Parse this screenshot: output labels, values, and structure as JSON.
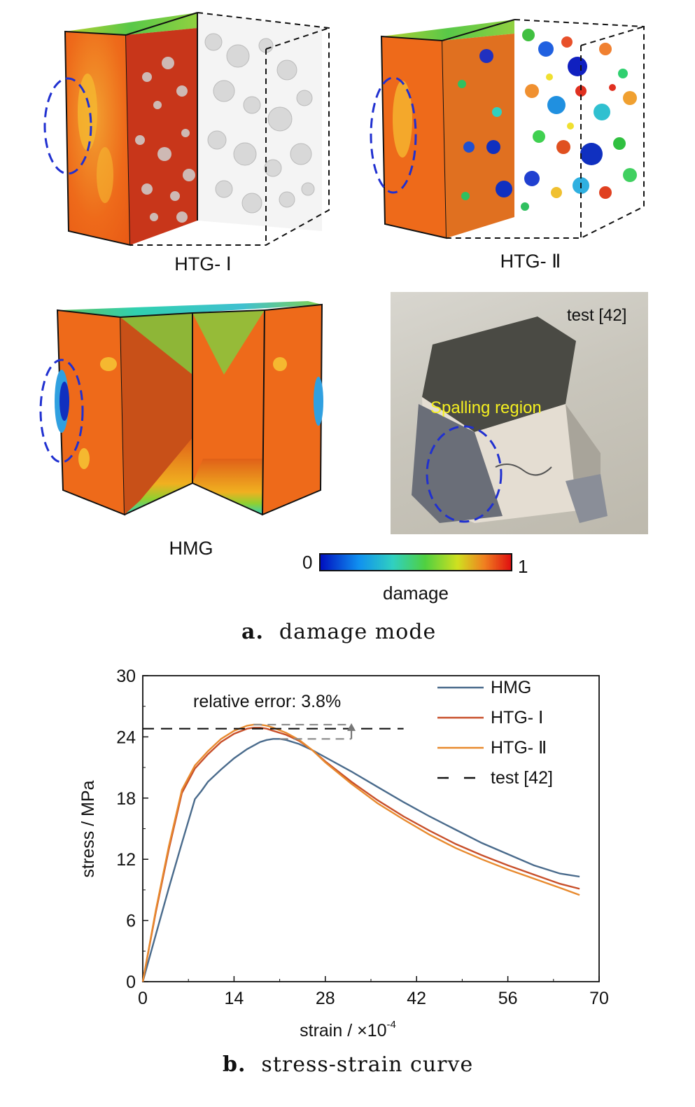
{
  "panel_a": {
    "labels": {
      "htg1": "HTG- Ⅰ",
      "htg2": "HTG- Ⅱ",
      "hmg": "HMG",
      "test": "test [42]",
      "spalling": "Spalling region"
    },
    "colorbar": {
      "min": "0",
      "max": "1",
      "label": "damage"
    },
    "caption": {
      "letter": "a.",
      "text": "damage mode"
    }
  },
  "panel_b": {
    "caption": {
      "letter": "b.",
      "text": "stress-strain curve"
    },
    "annotation": "relative error: 3.8%"
  },
  "chart_data": {
    "type": "line",
    "xlabel": "strain / ×10",
    "xlabel_exp": "-4",
    "ylabel": "stress / MPa",
    "xlim": [
      0,
      70
    ],
    "ylim": [
      0,
      30
    ],
    "xticks": [
      0,
      14,
      28,
      42,
      56,
      70
    ],
    "yticks": [
      0,
      6,
      12,
      18,
      24,
      30
    ],
    "legend_position": "top-right",
    "series": [
      {
        "name": "HMG",
        "color": "#4a6b8c",
        "x": [
          0,
          2,
          4,
          6,
          8,
          9,
          10,
          12,
          14,
          16,
          18,
          19,
          20,
          21,
          22,
          24,
          26,
          28,
          32,
          36,
          40,
          44,
          48,
          52,
          56,
          60,
          64,
          67
        ],
        "y": [
          0,
          4.6,
          9.2,
          13.6,
          17.9,
          18.7,
          19.6,
          20.8,
          21.9,
          22.8,
          23.5,
          23.7,
          23.8,
          23.8,
          23.7,
          23.3,
          22.7,
          22.0,
          20.6,
          19.1,
          17.6,
          16.2,
          14.9,
          13.6,
          12.5,
          11.4,
          10.6,
          10.3
        ]
      },
      {
        "name": "HTG- Ⅰ",
        "color": "#c8502b",
        "x": [
          0,
          2,
          4,
          6,
          8,
          10,
          12,
          14,
          16,
          17,
          18,
          19,
          20,
          22,
          24,
          26,
          28,
          32,
          36,
          40,
          44,
          48,
          52,
          56,
          60,
          64,
          67
        ],
        "y": [
          0,
          6.8,
          13.0,
          18.5,
          20.9,
          22.3,
          23.5,
          24.3,
          24.8,
          24.9,
          24.9,
          24.8,
          24.6,
          24.2,
          23.6,
          22.7,
          21.6,
          19.6,
          17.8,
          16.2,
          14.8,
          13.5,
          12.4,
          11.4,
          10.5,
          9.6,
          9.1
        ]
      },
      {
        "name": "HTG- Ⅱ",
        "color": "#e88a2e",
        "x": [
          0,
          2,
          4,
          6,
          8,
          10,
          12,
          14,
          16,
          17,
          18,
          19,
          20,
          22,
          24,
          26,
          28,
          32,
          36,
          40,
          44,
          48,
          52,
          56,
          60,
          64,
          67
        ],
        "y": [
          0,
          7.0,
          13.3,
          18.8,
          21.2,
          22.6,
          23.8,
          24.6,
          25.1,
          25.2,
          25.2,
          25.1,
          24.9,
          24.4,
          23.7,
          22.7,
          21.5,
          19.4,
          17.5,
          15.9,
          14.4,
          13.1,
          12.0,
          11.0,
          10.1,
          9.2,
          8.5
        ]
      },
      {
        "name": "test [42]",
        "color": "#111111",
        "dashed": true,
        "x": [
          0,
          40
        ],
        "y": [
          24.8,
          24.8
        ]
      }
    ]
  },
  "colors": {
    "damage_low": "#1030d0",
    "damage_mid": "#30d040",
    "damage_high": "#e02010",
    "ellipse": "#2030d0",
    "spalling_text": "#f5f020"
  }
}
